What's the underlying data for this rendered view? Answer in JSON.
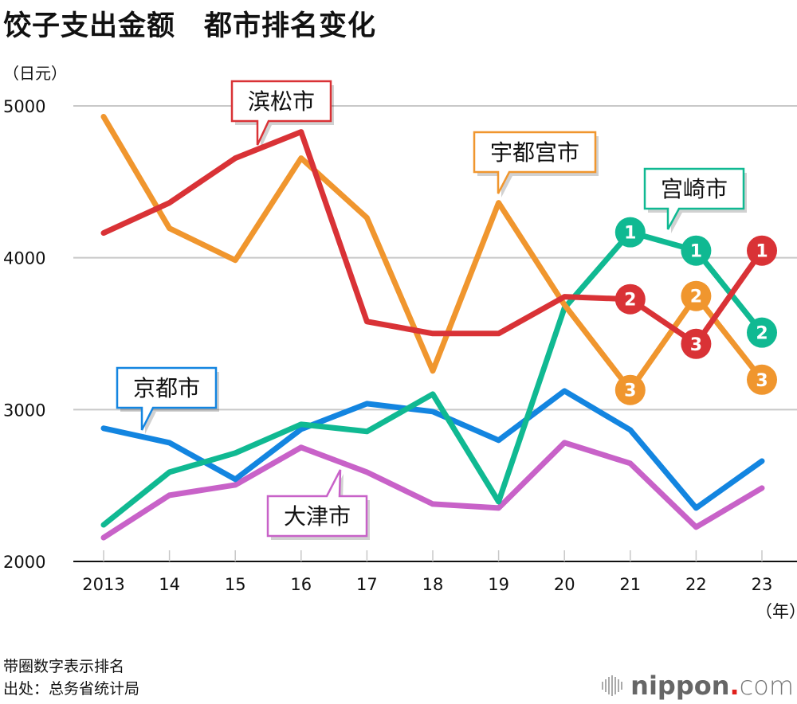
{
  "chart_data": {
    "type": "line",
    "title": "饺子支出金额　都市排名变化",
    "ylabel": "（日元）",
    "xlabel": "（年）",
    "ylim": [
      2000,
      5000
    ],
    "yticks": [
      2000,
      3000,
      4000,
      5000
    ],
    "grid": true,
    "categories": [
      "2013",
      "14",
      "15",
      "16",
      "17",
      "18",
      "19",
      "20",
      "21",
      "22",
      "23"
    ],
    "series": [
      {
        "name": "滨松市",
        "color": "#d93236",
        "values": [
          4163,
          4362,
          4656,
          4829,
          3580,
          3501,
          3501,
          3743,
          3727,
          3433,
          4047
        ],
        "ranks": [
          null,
          null,
          null,
          null,
          null,
          null,
          null,
          null,
          2,
          3,
          1
        ]
      },
      {
        "name": "宇都宫市",
        "color": "#f0962e",
        "values": [
          4929,
          4194,
          3984,
          4656,
          4263,
          3255,
          4362,
          3690,
          3129,
          3748,
          3197
        ],
        "ranks": [
          null,
          null,
          null,
          null,
          null,
          null,
          null,
          null,
          3,
          2,
          3
        ]
      },
      {
        "name": "宫崎市",
        "color": "#10b992",
        "values": [
          2241,
          2588,
          2714,
          2903,
          2856,
          3102,
          2394,
          3669,
          4168,
          4047,
          3507
        ],
        "ranks": [
          null,
          null,
          null,
          null,
          null,
          null,
          null,
          null,
          1,
          1,
          2
        ]
      },
      {
        "name": "京都市",
        "color": "#1385e0",
        "values": [
          2877,
          2782,
          2541,
          2871,
          3039,
          2987,
          2798,
          3123,
          2866,
          2352,
          2661
        ],
        "ranks": [
          null,
          null,
          null,
          null,
          null,
          null,
          null,
          null,
          null,
          null,
          null
        ]
      },
      {
        "name": "大津市",
        "color": "#c862c8",
        "values": [
          2157,
          2436,
          2504,
          2751,
          2588,
          2378,
          2352,
          2782,
          2646,
          2226,
          2483
        ],
        "ranks": [
          null,
          null,
          null,
          null,
          null,
          null,
          null,
          null,
          null,
          null,
          null
        ]
      }
    ],
    "annotations": [
      {
        "text": "滨松市",
        "series": "滨松市"
      },
      {
        "text": "宇都宫市",
        "series": "宇都宫市"
      },
      {
        "text": "宫崎市",
        "series": "宫崎市"
      },
      {
        "text": "京都市",
        "series": "京都市"
      },
      {
        "text": "大津市",
        "series": "大津市"
      }
    ]
  },
  "header": {
    "title": "饺子支出金额　都市排名变化",
    "unit": "（日元）"
  },
  "axis": {
    "year_unit": "（年）"
  },
  "footer": {
    "note": "带圈数字表示排名",
    "source": "出处：总务省统计局",
    "logo_main": "nippon",
    "logo_dot": ".",
    "logo_tld": "com"
  }
}
